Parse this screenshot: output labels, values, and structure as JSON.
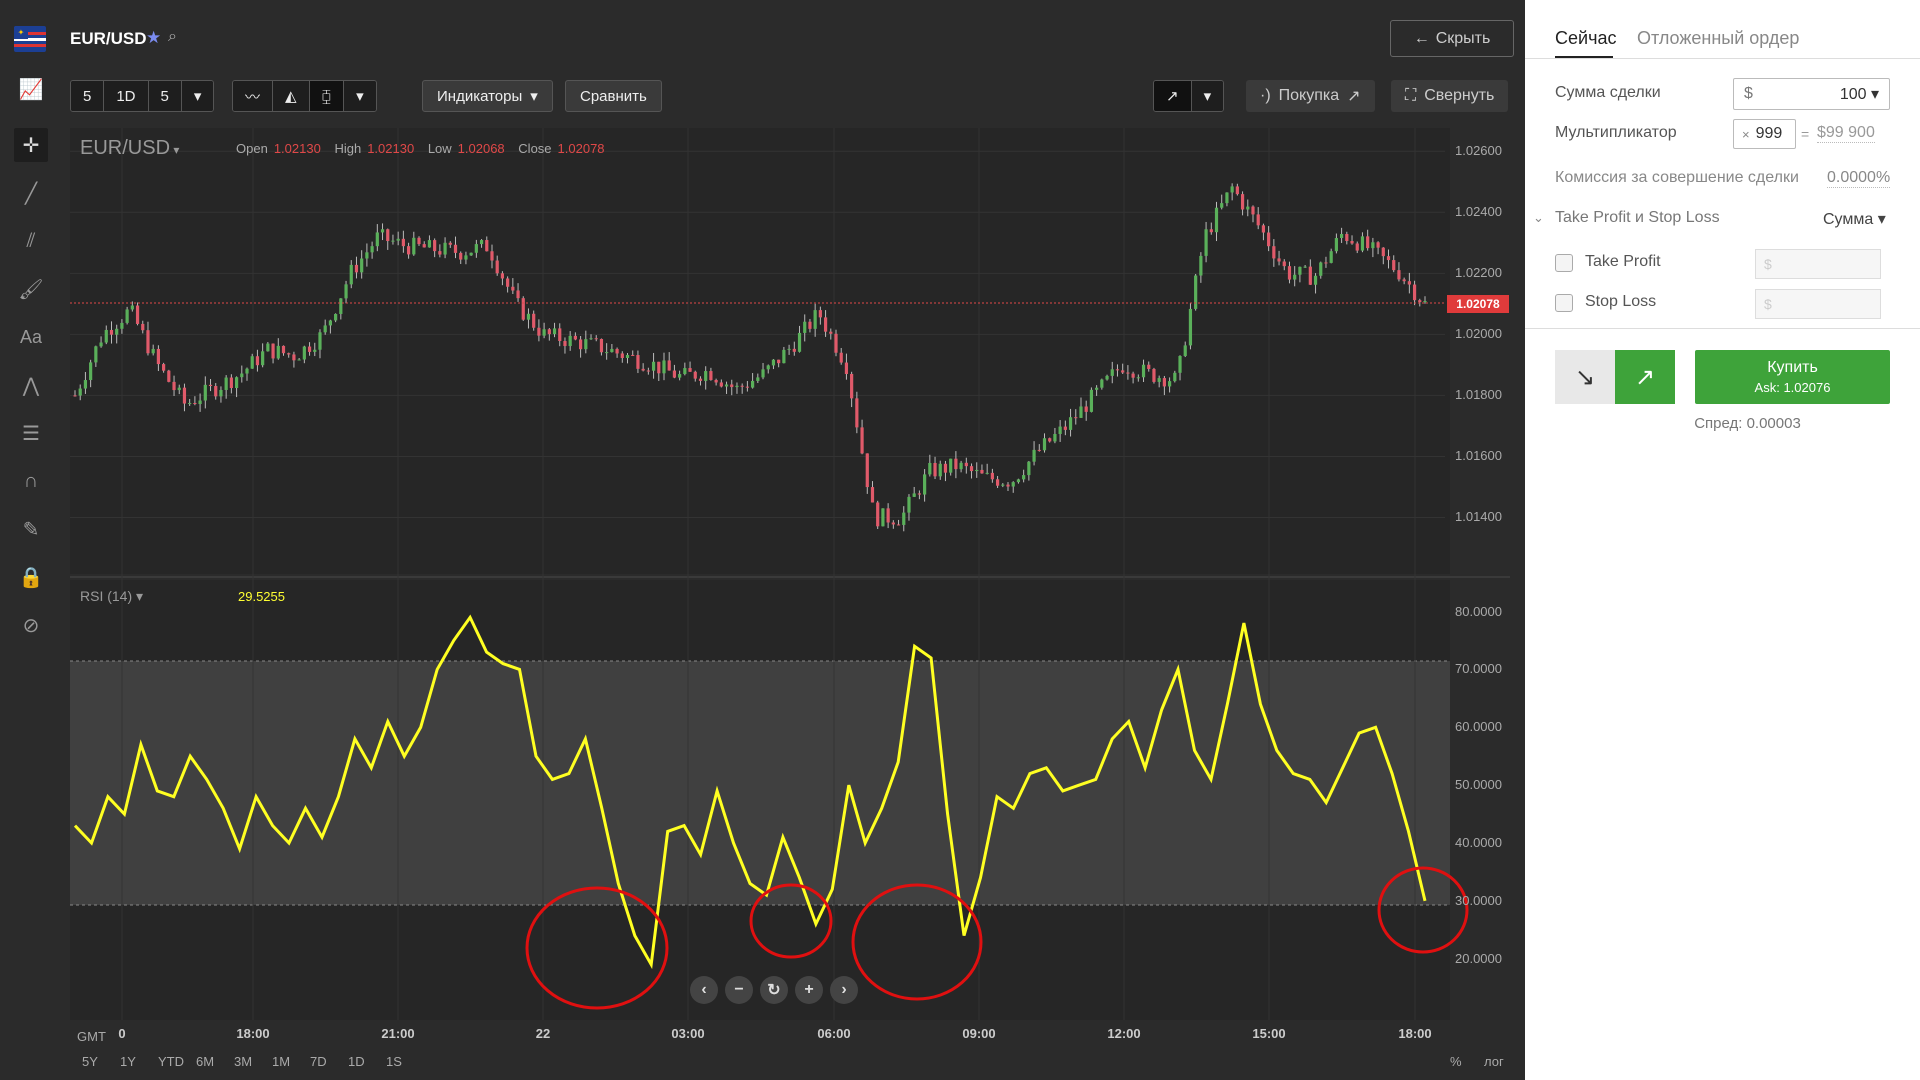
{
  "header": {
    "pair": "EUR/USD",
    "hide_label": "Скрыть"
  },
  "toolbar": {
    "interval_value": "5",
    "period": "1D",
    "candle_minutes": "5",
    "indicators_label": "Индикаторы",
    "compare_label": "Сравнить",
    "purchase_label": "Покупка",
    "collapse_label": "Свернуть"
  },
  "chart": {
    "symbol": "EUR/USD",
    "ohlc": {
      "open_label": "Open",
      "open": "1.02130",
      "high_label": "High",
      "high": "1.02130",
      "low_label": "Low",
      "low": "1.02068",
      "close_label": "Close",
      "close": "1.02078"
    },
    "current_price": "1.02078",
    "rsi_label": "RSI (14)",
    "rsi_value": "29.5255",
    "timezone": "GMT",
    "ranges": [
      "5Y",
      "1Y",
      "YTD",
      "6M",
      "3M",
      "1M",
      "7D",
      "1D",
      "1S"
    ],
    "scale_percent": "%",
    "scale_log": "лог"
  },
  "chart_data": [
    {
      "type": "candlestick",
      "title": "EUR/USD",
      "ylim": [
        1.013,
        1.0265
      ],
      "y_ticks": [
        "1.02600",
        "1.02400",
        "1.02200",
        "1.02000",
        "1.01800",
        "1.01600",
        "1.01400"
      ],
      "x_ticks": [
        "0",
        "18:00",
        "21:00",
        "22",
        "03:00",
        "06:00",
        "09:00",
        "12:00",
        "15:00",
        "18:00"
      ],
      "close_series": [
        1.018,
        1.02,
        1.0208,
        1.019,
        1.0177,
        1.0182,
        1.0187,
        1.0195,
        1.0193,
        1.02,
        1.022,
        1.0232,
        1.0229,
        1.0228,
        1.0227,
        1.0229,
        1.021,
        1.02,
        1.0198,
        1.0196,
        1.0193,
        1.019,
        1.0186,
        1.0188,
        1.0182,
        1.0187,
        1.0196,
        1.0207,
        1.019,
        1.014,
        1.014,
        1.0155,
        1.0157,
        1.0153,
        1.0152,
        1.0162,
        1.017,
        1.018,
        1.019,
        1.0187,
        1.0185,
        1.0232,
        1.0248,
        1.0235,
        1.022,
        1.0219,
        1.0233,
        1.0228,
        1.0221,
        1.021
      ],
      "last_price": 1.02078
    },
    {
      "type": "line",
      "title": "RSI (14)",
      "ylim": [
        12,
        82
      ],
      "y_ticks": [
        "80.0000",
        "70.0000",
        "60.0000",
        "50.0000",
        "40.0000",
        "30.0000",
        "20.0000"
      ],
      "band": [
        30,
        70
      ],
      "series": [
        {
          "values": [
            43,
            40,
            48,
            45,
            57,
            49,
            48,
            55,
            51,
            46,
            39,
            48,
            43,
            40,
            46,
            41,
            48,
            58,
            53,
            61,
            55,
            60,
            70,
            75,
            79,
            73,
            71,
            70,
            55,
            51,
            52,
            58,
            46,
            33,
            24,
            19,
            42,
            43,
            38,
            49,
            40,
            33,
            31,
            41,
            34,
            26,
            32,
            50,
            40,
            46,
            54,
            74,
            72,
            45,
            24,
            34,
            48,
            46,
            52,
            53,
            49,
            50,
            51,
            58,
            61,
            53,
            63,
            70,
            56,
            51,
            64,
            78,
            64,
            56,
            52,
            51,
            47,
            53,
            59,
            60,
            52,
            42,
            30
          ]
        }
      ],
      "annotations": [
        "circle",
        "circle",
        "circle",
        "circle"
      ]
    }
  ],
  "panel": {
    "tab_now": "Сейчас",
    "tab_pending": "Отложенный ордер",
    "amount_label": "Сумма сделки",
    "amount_currency": "$",
    "amount_value": "100",
    "multiplier_label": "Мультипликатор",
    "multiplier_prefix": "×",
    "multiplier_value": "999",
    "multiplier_eq": "=",
    "multiplier_result": "$99 900",
    "commission_label": "Комиссия за совершение сделки",
    "commission_value": "0.0000%",
    "tpsl_label": "Take Profit и Stop Loss",
    "tpsl_mode": "Сумма",
    "take_profit_label": "Take Profit",
    "stop_loss_label": "Stop Loss",
    "input_placeholder": "$",
    "buy_label": "Купить",
    "ask_label": "Ask: 1.02076",
    "spread_label": "Спред: 0.00003",
    "colors": {
      "buy": "#3ea33a",
      "sell_bg": "#e8e8e8"
    }
  }
}
